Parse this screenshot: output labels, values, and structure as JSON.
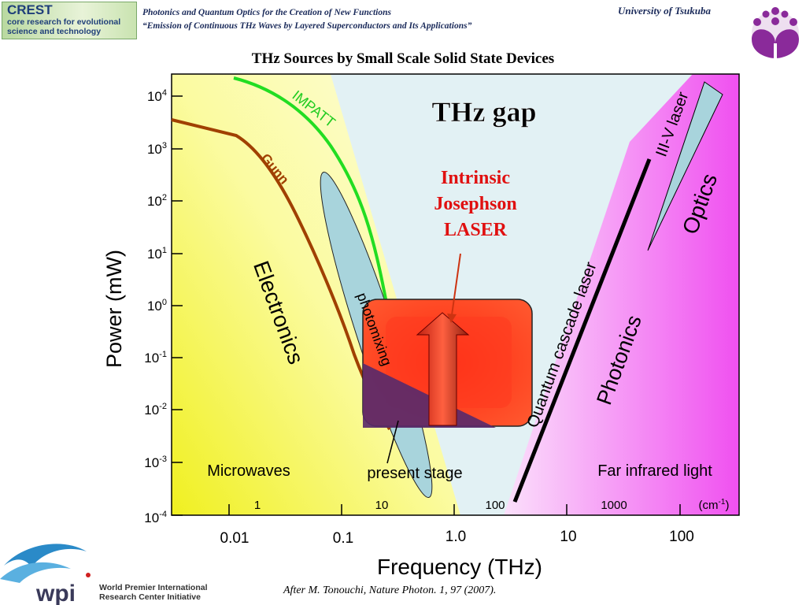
{
  "header": {
    "logo_title": "CREST",
    "logo_line1": "core research for evolutional",
    "logo_line2": "science and technology",
    "line1": "Photonics and Quantum Optics for the Creation of New Functions",
    "line2": "“Emission of Continuous THz Waves by Layered Superconductors and Its Applications”",
    "university": "University of Tsukuba"
  },
  "title": "THz Sources by Small Scale Solid State Devices",
  "diagram": {
    "y_axis_label": "Power (mW)",
    "x_axis_label": "Frequency (THz)",
    "y_ticks": [
      {
        "base": "10",
        "exp": "4"
      },
      {
        "base": "10",
        "exp": "3"
      },
      {
        "base": "10",
        "exp": "2"
      },
      {
        "base": "10",
        "exp": "1"
      },
      {
        "base": "10",
        "exp": "0"
      },
      {
        "base": "10",
        "exp": "-1"
      },
      {
        "base": "10",
        "exp": "-2"
      },
      {
        "base": "10",
        "exp": "-3"
      },
      {
        "base": "10",
        "exp": "-4"
      }
    ],
    "x_ticks": [
      "0.01",
      "0.1",
      "1.0",
      "10",
      "100"
    ],
    "cm_ticks": [
      "1",
      "10",
      "100",
      "1000"
    ],
    "cm_unit": {
      "text": "(cm",
      "exp": "-1",
      "close": ")"
    },
    "labels": {
      "thz_gap": "THz gap",
      "intrinsic1": "Intrinsic",
      "intrinsic2": "Josephson",
      "intrinsic3": "LASER",
      "impatt": "IMPATT",
      "gunn": "Gunn",
      "electronics": "Electronics",
      "photomixing": "photomixing",
      "present_stage": "present stage",
      "microwaves": "Microwaves",
      "far_infrared": "Far infrared light",
      "qcl": "Quantum cascade laser",
      "photonics": "Photonics",
      "iiiv": "III-V laser",
      "optics": "Optics"
    },
    "colors": {
      "electronics_region": "#f8f840",
      "thz_gap_region": "#dff0f4",
      "photonics_region": "#f060f0",
      "impatt_curve": "#22dd22",
      "gunn_curve": "#a04000",
      "laser_box": "#ff4422",
      "present_stage": "#5a2a6a",
      "photomixing_ellipse": "#a8d4dc"
    }
  },
  "footer": {
    "caption": "After M. Tonouchi, Nature Photon. 1, 97 (2007).",
    "wpi_logo": "wpi",
    "wpi_line1": "World Premier International",
    "wpi_line2": "Research Center Initiative"
  }
}
